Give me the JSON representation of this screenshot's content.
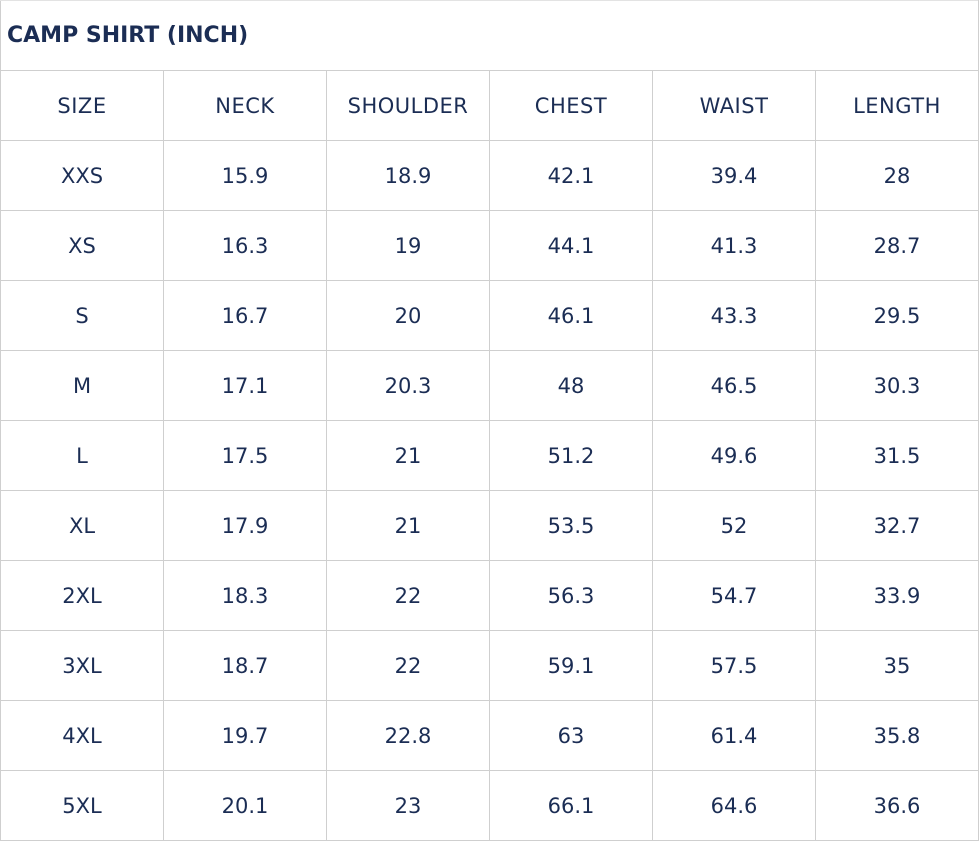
{
  "title": "CAMP SHIRT (INCH)",
  "columns": [
    "SIZE",
    "NECK",
    "SHOULDER",
    "CHEST",
    "WAIST",
    "LENGTH"
  ],
  "rows": [
    [
      "XXS",
      "15.9",
      "18.9",
      "42.1",
      "39.4",
      "28"
    ],
    [
      "XS",
      "16.3",
      "19",
      "44.1",
      "41.3",
      "28.7"
    ],
    [
      "S",
      "16.7",
      "20",
      "46.1",
      "43.3",
      "29.5"
    ],
    [
      "M",
      "17.1",
      "20.3",
      "48",
      "46.5",
      "30.3"
    ],
    [
      "L",
      "17.5",
      "21",
      "51.2",
      "49.6",
      "31.5"
    ],
    [
      "XL",
      "17.9",
      "21",
      "53.5",
      "52",
      "32.7"
    ],
    [
      "2XL",
      "18.3",
      "22",
      "56.3",
      "54.7",
      "33.9"
    ],
    [
      "3XL",
      "18.7",
      "22",
      "59.1",
      "57.5",
      "35"
    ],
    [
      "4XL",
      "19.7",
      "22.8",
      "63",
      "61.4",
      "35.8"
    ],
    [
      "5XL",
      "20.1",
      "23",
      "66.1",
      "64.6",
      "36.6"
    ]
  ],
  "colors": {
    "text": "#1b2d54",
    "border": "#cfcfcf"
  }
}
